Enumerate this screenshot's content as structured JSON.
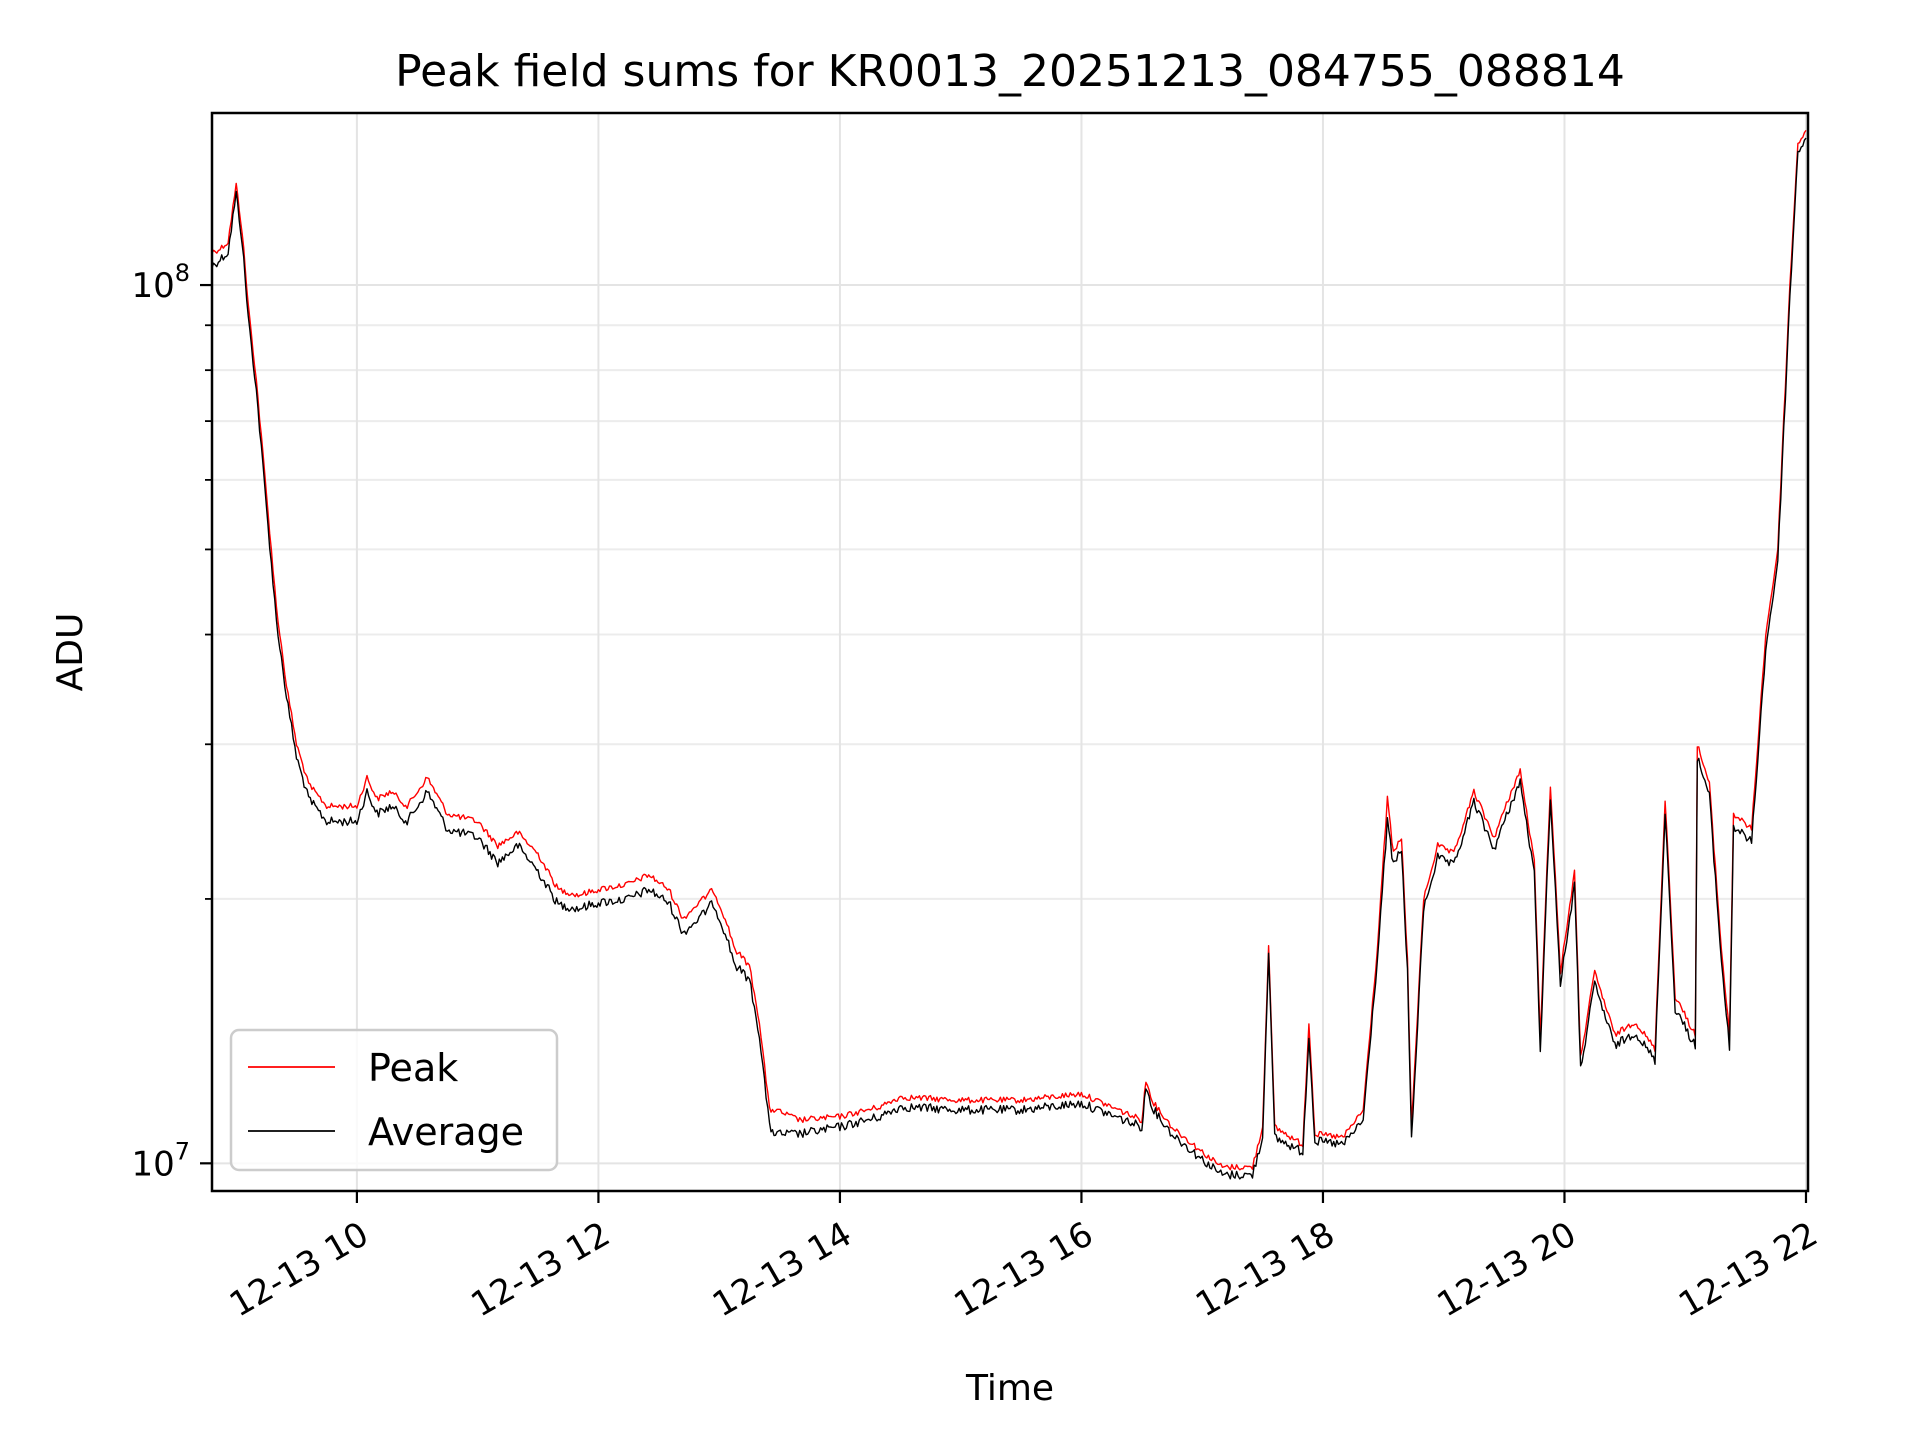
{
  "chart_data": {
    "type": "line",
    "title": "Peak field sums for KR0013_20251213_084755_088814",
    "xlabel": "Time",
    "ylabel": "ADU",
    "x_is_time": true,
    "xlim": [
      "2025-12-13 08:48",
      "2025-12-13 22:01"
    ],
    "ylim": [
      9300000,
      157000000
    ],
    "yscale": "log",
    "grid": true,
    "legend": "lower-left",
    "x_ticks": [
      {
        "x": "2025-12-13 10:00",
        "label": "12-13 10"
      },
      {
        "x": "2025-12-13 12:00",
        "label": "12-13 12"
      },
      {
        "x": "2025-12-13 14:00",
        "label": "12-13 14"
      },
      {
        "x": "2025-12-13 16:00",
        "label": "12-13 16"
      },
      {
        "x": "2025-12-13 18:00",
        "label": "12-13 18"
      },
      {
        "x": "2025-12-13 20:00",
        "label": "12-13 20"
      },
      {
        "x": "2025-12-13 22:00",
        "label": "12-13 22"
      }
    ],
    "y_ticks": [
      {
        "y": 10000000,
        "base": "10",
        "exp": "7"
      },
      {
        "y": 100000000,
        "base": "10",
        "exp": "8"
      }
    ],
    "series": [
      {
        "name": "Peak",
        "color": "#ff0000",
        "points": [
          [
            "2025-12-13 08:48",
            109000000
          ],
          [
            "2025-12-13 08:52",
            110000000
          ],
          [
            "2025-12-13 08:56",
            112000000
          ],
          [
            "2025-12-13 09:00",
            130000000
          ],
          [
            "2025-12-13 09:03",
            115000000
          ],
          [
            "2025-12-13 09:06",
            95000000
          ],
          [
            "2025-12-13 09:10",
            78000000
          ],
          [
            "2025-12-13 09:15",
            58000000
          ],
          [
            "2025-12-13 09:20",
            43000000
          ],
          [
            "2025-12-13 09:25",
            35000000
          ],
          [
            "2025-12-13 09:30",
            30000000
          ],
          [
            "2025-12-13 09:36",
            27000000
          ],
          [
            "2025-12-13 09:45",
            25500000
          ],
          [
            "2025-12-13 10:00",
            25500000
          ],
          [
            "2025-12-13 10:05",
            27500000
          ],
          [
            "2025-12-13 10:10",
            26000000
          ],
          [
            "2025-12-13 10:17",
            26500000
          ],
          [
            "2025-12-13 10:25",
            25500000
          ],
          [
            "2025-12-13 10:35",
            27500000
          ],
          [
            "2025-12-13 10:45",
            25000000
          ],
          [
            "2025-12-13 11:00",
            24500000
          ],
          [
            "2025-12-13 11:10",
            23000000
          ],
          [
            "2025-12-13 11:20",
            23800000
          ],
          [
            "2025-12-13 11:30",
            22500000
          ],
          [
            "2025-12-13 11:40",
            20500000
          ],
          [
            "2025-12-13 11:50",
            20200000
          ],
          [
            "2025-12-13 12:00",
            20500000
          ],
          [
            "2025-12-13 12:15",
            20800000
          ],
          [
            "2025-12-13 12:25",
            21300000
          ],
          [
            "2025-12-13 12:35",
            20500000
          ],
          [
            "2025-12-13 12:42",
            19000000
          ],
          [
            "2025-12-13 12:50",
            19800000
          ],
          [
            "2025-12-13 12:57",
            20500000
          ],
          [
            "2025-12-13 13:03",
            19000000
          ],
          [
            "2025-12-13 13:08",
            17500000
          ],
          [
            "2025-12-13 13:15",
            16800000
          ],
          [
            "2025-12-13 13:20",
            14500000
          ],
          [
            "2025-12-13 13:25",
            11500000
          ],
          [
            "2025-12-13 13:28",
            11500000
          ],
          [
            "2025-12-13 13:40",
            11200000
          ],
          [
            "2025-12-13 14:00",
            11300000
          ],
          [
            "2025-12-13 14:20",
            11600000
          ],
          [
            "2025-12-13 14:30",
            11900000
          ],
          [
            "2025-12-13 15:00",
            11800000
          ],
          [
            "2025-12-13 15:30",
            11800000
          ],
          [
            "2025-12-13 16:00",
            12000000
          ],
          [
            "2025-12-13 16:30",
            11200000
          ],
          [
            "2025-12-13 16:32",
            12400000
          ],
          [
            "2025-12-13 16:36",
            11700000
          ],
          [
            "2025-12-13 16:45",
            11000000
          ],
          [
            "2025-12-13 17:00",
            10300000
          ],
          [
            "2025-12-13 17:10",
            9900000
          ],
          [
            "2025-12-13 17:25",
            9900000
          ],
          [
            "2025-12-13 17:30",
            11000000
          ],
          [
            "2025-12-13 17:33",
            17800000
          ],
          [
            "2025-12-13 17:36",
            11000000
          ],
          [
            "2025-12-13 17:50",
            10500000
          ],
          [
            "2025-12-13 17:53",
            14500000
          ],
          [
            "2025-12-13 17:56",
            10800000
          ],
          [
            "2025-12-13 18:10",
            10700000
          ],
          [
            "2025-12-13 18:20",
            11500000
          ],
          [
            "2025-12-13 18:27",
            17500000
          ],
          [
            "2025-12-13 18:32",
            26000000
          ],
          [
            "2025-12-13 18:35",
            22500000
          ],
          [
            "2025-12-13 18:39",
            23500000
          ],
          [
            "2025-12-13 18:42",
            17000000
          ],
          [
            "2025-12-13 18:44",
            11000000
          ],
          [
            "2025-12-13 18:50",
            20000000
          ],
          [
            "2025-12-13 18:57",
            23000000
          ],
          [
            "2025-12-13 19:05",
            22500000
          ],
          [
            "2025-12-13 19:15",
            26500000
          ],
          [
            "2025-12-13 19:25",
            23500000
          ],
          [
            "2025-12-13 19:35",
            27000000
          ],
          [
            "2025-12-13 19:38",
            28000000
          ],
          [
            "2025-12-13 19:45",
            22000000
          ],
          [
            "2025-12-13 19:48",
            14000000
          ],
          [
            "2025-12-13 19:53",
            27000000
          ],
          [
            "2025-12-13 19:58",
            16500000
          ],
          [
            "2025-12-13 20:05",
            21500000
          ],
          [
            "2025-12-13 20:08",
            13200000
          ],
          [
            "2025-12-13 20:15",
            16500000
          ],
          [
            "2025-12-13 20:25",
            14000000
          ],
          [
            "2025-12-13 20:35",
            14500000
          ],
          [
            "2025-12-13 20:45",
            13500000
          ],
          [
            "2025-12-13 20:50",
            26000000
          ],
          [
            "2025-12-13 20:55",
            15500000
          ],
          [
            "2025-12-13 21:05",
            14000000
          ],
          [
            "2025-12-13 21:06",
            30000000
          ],
          [
            "2025-12-13 21:12",
            27000000
          ],
          [
            "2025-12-13 21:18",
            17500000
          ],
          [
            "2025-12-13 21:22",
            14000000
          ],
          [
            "2025-12-13 21:24",
            25000000
          ],
          [
            "2025-12-13 21:33",
            24000000
          ],
          [
            "2025-12-13 21:40",
            40000000
          ],
          [
            "2025-12-13 21:46",
            50000000
          ],
          [
            "2025-12-13 21:52",
            100000000
          ],
          [
            "2025-12-13 21:56",
            145000000
          ],
          [
            "2025-12-13 22:00",
            150000000
          ]
        ]
      },
      {
        "name": "Average",
        "color": "#000000",
        "points": [
          [
            "2025-12-13 08:48",
            105000000
          ],
          [
            "2025-12-13 08:52",
            107000000
          ],
          [
            "2025-12-13 08:56",
            109000000
          ],
          [
            "2025-12-13 09:00",
            127000000
          ],
          [
            "2025-12-13 09:03",
            112000000
          ],
          [
            "2025-12-13 09:06",
            92000000
          ],
          [
            "2025-12-13 09:10",
            76000000
          ],
          [
            "2025-12-13 09:15",
            56000000
          ],
          [
            "2025-12-13 09:20",
            41500000
          ],
          [
            "2025-12-13 09:25",
            34000000
          ],
          [
            "2025-12-13 09:30",
            29000000
          ],
          [
            "2025-12-13 09:36",
            26000000
          ],
          [
            "2025-12-13 09:45",
            24500000
          ],
          [
            "2025-12-13 10:00",
            24500000
          ],
          [
            "2025-12-13 10:05",
            26500000
          ],
          [
            "2025-12-13 10:10",
            25000000
          ],
          [
            "2025-12-13 10:17",
            25500000
          ],
          [
            "2025-12-13 10:25",
            24500000
          ],
          [
            "2025-12-13 10:35",
            26500000
          ],
          [
            "2025-12-13 10:45",
            24000000
          ],
          [
            "2025-12-13 11:00",
            23500000
          ],
          [
            "2025-12-13 11:10",
            22000000
          ],
          [
            "2025-12-13 11:20",
            23000000
          ],
          [
            "2025-12-13 11:30",
            21500000
          ],
          [
            "2025-12-13 11:40",
            19700000
          ],
          [
            "2025-12-13 11:50",
            19500000
          ],
          [
            "2025-12-13 12:00",
            19800000
          ],
          [
            "2025-12-13 12:15",
            20000000
          ],
          [
            "2025-12-13 12:25",
            20500000
          ],
          [
            "2025-12-13 12:35",
            19800000
          ],
          [
            "2025-12-13 12:42",
            18300000
          ],
          [
            "2025-12-13 12:50",
            19000000
          ],
          [
            "2025-12-13 12:57",
            19800000
          ],
          [
            "2025-12-13 13:03",
            18300000
          ],
          [
            "2025-12-13 13:08",
            16800000
          ],
          [
            "2025-12-13 13:15",
            16200000
          ],
          [
            "2025-12-13 13:20",
            14000000
          ],
          [
            "2025-12-13 13:25",
            11000000
          ],
          [
            "2025-12-13 13:28",
            10800000
          ],
          [
            "2025-12-13 13:40",
            10800000
          ],
          [
            "2025-12-13 14:00",
            11000000
          ],
          [
            "2025-12-13 14:20",
            11300000
          ],
          [
            "2025-12-13 14:30",
            11600000
          ],
          [
            "2025-12-13 15:00",
            11500000
          ],
          [
            "2025-12-13 15:30",
            11500000
          ],
          [
            "2025-12-13 16:00",
            11700000
          ],
          [
            "2025-12-13 16:30",
            11000000
          ],
          [
            "2025-12-13 16:32",
            12200000
          ],
          [
            "2025-12-13 16:36",
            11500000
          ],
          [
            "2025-12-13 16:45",
            10800000
          ],
          [
            "2025-12-13 17:00",
            10100000
          ],
          [
            "2025-12-13 17:10",
            9700000
          ],
          [
            "2025-12-13 17:25",
            9700000
          ],
          [
            "2025-12-13 17:30",
            10700000
          ],
          [
            "2025-12-13 17:33",
            17500000
          ],
          [
            "2025-12-13 17:36",
            10700000
          ],
          [
            "2025-12-13 17:50",
            10300000
          ],
          [
            "2025-12-13 17:53",
            14000000
          ],
          [
            "2025-12-13 17:56",
            10600000
          ],
          [
            "2025-12-13 18:10",
            10500000
          ],
          [
            "2025-12-13 18:20",
            11200000
          ],
          [
            "2025-12-13 18:27",
            17000000
          ],
          [
            "2025-12-13 18:32",
            24500000
          ],
          [
            "2025-12-13 18:35",
            21800000
          ],
          [
            "2025-12-13 18:39",
            22800000
          ],
          [
            "2025-12-13 18:42",
            16500000
          ],
          [
            "2025-12-13 18:44",
            10600000
          ],
          [
            "2025-12-13 18:50",
            19500000
          ],
          [
            "2025-12-13 18:57",
            22300000
          ],
          [
            "2025-12-13 19:05",
            21800000
          ],
          [
            "2025-12-13 19:15",
            25800000
          ],
          [
            "2025-12-13 19:25",
            22800000
          ],
          [
            "2025-12-13 19:35",
            26200000
          ],
          [
            "2025-12-13 19:38",
            27200000
          ],
          [
            "2025-12-13 19:45",
            21300000
          ],
          [
            "2025-12-13 19:48",
            13500000
          ],
          [
            "2025-12-13 19:53",
            26200000
          ],
          [
            "2025-12-13 19:58",
            16000000
          ],
          [
            "2025-12-13 20:05",
            20800000
          ],
          [
            "2025-12-13 20:08",
            12800000
          ],
          [
            "2025-12-13 20:15",
            16000000
          ],
          [
            "2025-12-13 20:25",
            13600000
          ],
          [
            "2025-12-13 20:35",
            14100000
          ],
          [
            "2025-12-13 20:45",
            13100000
          ],
          [
            "2025-12-13 20:50",
            25200000
          ],
          [
            "2025-12-13 20:55",
            15000000
          ],
          [
            "2025-12-13 21:05",
            13600000
          ],
          [
            "2025-12-13 21:06",
            29000000
          ],
          [
            "2025-12-13 21:12",
            26200000
          ],
          [
            "2025-12-13 21:18",
            17000000
          ],
          [
            "2025-12-13 21:22",
            13500000
          ],
          [
            "2025-12-13 21:24",
            24200000
          ],
          [
            "2025-12-13 21:33",
            23200000
          ],
          [
            "2025-12-13 21:40",
            38500000
          ],
          [
            "2025-12-13 21:46",
            48500000
          ],
          [
            "2025-12-13 21:52",
            97000000
          ],
          [
            "2025-12-13 21:56",
            142000000
          ],
          [
            "2025-12-13 22:00",
            147000000
          ]
        ]
      }
    ]
  }
}
